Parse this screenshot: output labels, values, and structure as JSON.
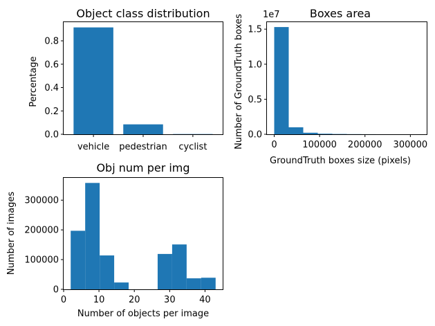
{
  "chart_data": [
    {
      "type": "bar",
      "title": "Object class distribution",
      "xlabel": "",
      "ylabel": "Percentage",
      "categories": [
        "vehicle",
        "pedestrian",
        "cyclist"
      ],
      "values": [
        0.915,
        0.085,
        0.002
      ],
      "ylim": [
        0,
        0.96
      ],
      "yticks": [
        0.0,
        0.2,
        0.4,
        0.6,
        0.8
      ],
      "ytick_labels": [
        "0.0",
        "0.2",
        "0.4",
        "0.6",
        "0.8"
      ],
      "bar_color": "#1f77b4",
      "grid": false
    },
    {
      "type": "bar",
      "histogram": true,
      "title": "Boxes area",
      "xlabel": "GroundTruth boxes size (pixels)",
      "ylabel": "Number of GroundTruth boxes",
      "offset_text": "1e7",
      "bin_edges": [
        0,
        32000,
        64000,
        96000,
        128000,
        160000,
        192000,
        224000,
        256000,
        288000,
        320000
      ],
      "values": [
        1.53,
        0.1,
        0.022,
        0.008,
        0.004,
        0.002,
        0.001,
        0.0005,
        0.0003,
        0.0002
      ],
      "xlim": [
        -16000,
        336000
      ],
      "ylim": [
        0,
        1.6
      ],
      "xticks": [
        0,
        100000,
        200000,
        300000
      ],
      "xtick_labels": [
        "0",
        "100000",
        "200000",
        "300000"
      ],
      "yticks": [
        0.0,
        0.5,
        1.0,
        1.5
      ],
      "ytick_labels": [
        "0.0",
        "0.5",
        "1.0",
        "1.5"
      ],
      "bar_color": "#1f77b4",
      "grid": false
    },
    {
      "type": "bar",
      "histogram": true,
      "title": "Obj num per img",
      "xlabel": "Number of objects per image",
      "ylabel": "Number of images",
      "bin_edges": [
        2,
        6.1,
        10.2,
        14.3,
        18.4,
        22.5,
        26.6,
        30.7,
        34.8,
        38.9,
        43
      ],
      "values": [
        197000,
        358000,
        114000,
        23000,
        0,
        0,
        119000,
        151000,
        37000,
        39000
      ],
      "xlim": [
        0,
        45
      ],
      "ylim": [
        0,
        375000
      ],
      "xticks": [
        0,
        10,
        20,
        30,
        40
      ],
      "xtick_labels": [
        "0",
        "10",
        "20",
        "30",
        "40"
      ],
      "yticks": [
        0,
        100000,
        200000,
        300000
      ],
      "ytick_labels": [
        "0",
        "100000",
        "200000",
        "300000"
      ],
      "bar_color": "#1f77b4",
      "grid": false
    }
  ]
}
